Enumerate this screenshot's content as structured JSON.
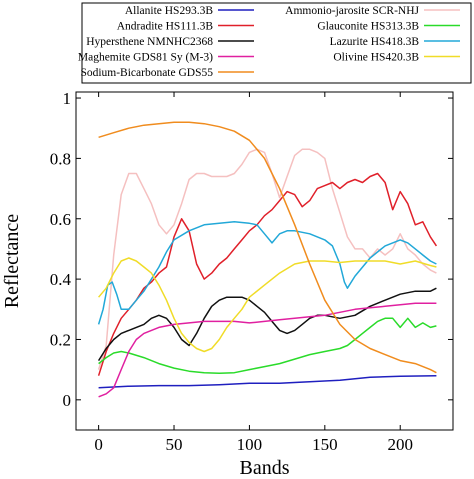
{
  "chart_data": {
    "type": "line",
    "title": "",
    "xlabel": "Bands",
    "ylabel": "Reflectance",
    "xlim": [
      -15,
      235
    ],
    "ylim": [
      -0.1,
      1.02
    ],
    "xticks": [
      0,
      50,
      100,
      150,
      200
    ],
    "yticks": [
      0,
      0.2,
      0.4,
      0.6,
      0.8,
      1
    ],
    "xtick_labels": [
      "0",
      "50",
      "100",
      "150",
      "200"
    ],
    "ytick_labels": [
      "0",
      "0.2",
      "0.4",
      "0.6",
      "0.8",
      "1"
    ],
    "grid": false,
    "legend_position": "top, above plot, two columns",
    "series": [
      {
        "name": "Allanite HS293.3B",
        "color": "#1f1fbf",
        "x": [
          0,
          20,
          40,
          60,
          80,
          100,
          120,
          140,
          160,
          180,
          200,
          224
        ],
        "y": [
          0.04,
          0.045,
          0.047,
          0.047,
          0.05,
          0.055,
          0.055,
          0.06,
          0.065,
          0.075,
          0.078,
          0.08
        ]
      },
      {
        "name": "Ammonio-jarosite SCR-NHJ",
        "color": "#f5c0c0",
        "x": [
          0,
          5,
          10,
          15,
          20,
          25,
          30,
          35,
          40,
          45,
          50,
          55,
          60,
          65,
          70,
          75,
          80,
          85,
          90,
          95,
          100,
          105,
          110,
          115,
          120,
          125,
          130,
          135,
          140,
          145,
          150,
          155,
          160,
          165,
          170,
          175,
          180,
          185,
          190,
          195,
          200,
          205,
          210,
          215,
          220,
          224
        ],
        "y": [
          0.1,
          0.18,
          0.48,
          0.68,
          0.75,
          0.75,
          0.7,
          0.65,
          0.58,
          0.55,
          0.58,
          0.65,
          0.73,
          0.75,
          0.75,
          0.74,
          0.74,
          0.74,
          0.75,
          0.78,
          0.82,
          0.83,
          0.82,
          0.75,
          0.67,
          0.74,
          0.81,
          0.83,
          0.83,
          0.82,
          0.8,
          0.7,
          0.62,
          0.54,
          0.5,
          0.5,
          0.47,
          0.5,
          0.48,
          0.5,
          0.55,
          0.5,
          0.48,
          0.45,
          0.43,
          0.42
        ]
      },
      {
        "name": "Andradite HS111.3B",
        "color": "#e0202a",
        "x": [
          0,
          5,
          10,
          15,
          20,
          25,
          30,
          35,
          40,
          45,
          50,
          55,
          60,
          65,
          70,
          75,
          80,
          85,
          90,
          95,
          100,
          105,
          110,
          115,
          120,
          125,
          130,
          135,
          140,
          145,
          150,
          155,
          160,
          165,
          170,
          175,
          180,
          185,
          190,
          195,
          200,
          205,
          210,
          215,
          220,
          224
        ],
        "y": [
          0.08,
          0.16,
          0.22,
          0.27,
          0.3,
          0.33,
          0.37,
          0.39,
          0.42,
          0.44,
          0.54,
          0.6,
          0.56,
          0.45,
          0.4,
          0.42,
          0.45,
          0.47,
          0.5,
          0.53,
          0.56,
          0.58,
          0.61,
          0.63,
          0.66,
          0.69,
          0.68,
          0.64,
          0.66,
          0.7,
          0.71,
          0.72,
          0.7,
          0.72,
          0.73,
          0.72,
          0.74,
          0.75,
          0.72,
          0.63,
          0.69,
          0.65,
          0.58,
          0.59,
          0.54,
          0.51
        ]
      },
      {
        "name": "Glauconite HS313.3B",
        "color": "#2adb2a",
        "x": [
          0,
          5,
          10,
          15,
          20,
          30,
          40,
          50,
          60,
          70,
          80,
          90,
          100,
          110,
          120,
          130,
          140,
          150,
          160,
          165,
          170,
          175,
          180,
          185,
          190,
          195,
          200,
          205,
          210,
          215,
          220,
          224
        ],
        "y": [
          0.12,
          0.14,
          0.155,
          0.16,
          0.155,
          0.14,
          0.12,
          0.105,
          0.095,
          0.09,
          0.088,
          0.09,
          0.1,
          0.11,
          0.12,
          0.135,
          0.15,
          0.16,
          0.17,
          0.18,
          0.2,
          0.22,
          0.24,
          0.26,
          0.27,
          0.27,
          0.24,
          0.27,
          0.24,
          0.255,
          0.24,
          0.245
        ]
      },
      {
        "name": "Hypersthene NMNHC2368",
        "color": "#111111",
        "x": [
          0,
          5,
          10,
          15,
          20,
          25,
          30,
          35,
          40,
          45,
          50,
          55,
          60,
          65,
          70,
          75,
          80,
          85,
          90,
          95,
          100,
          105,
          110,
          115,
          120,
          125,
          130,
          135,
          140,
          145,
          150,
          160,
          170,
          180,
          190,
          200,
          210,
          220,
          224
        ],
        "y": [
          0.13,
          0.17,
          0.2,
          0.22,
          0.23,
          0.24,
          0.25,
          0.27,
          0.28,
          0.27,
          0.24,
          0.2,
          0.18,
          0.22,
          0.27,
          0.31,
          0.33,
          0.34,
          0.34,
          0.34,
          0.33,
          0.31,
          0.29,
          0.26,
          0.23,
          0.22,
          0.23,
          0.25,
          0.27,
          0.28,
          0.28,
          0.27,
          0.28,
          0.31,
          0.33,
          0.35,
          0.36,
          0.36,
          0.37
        ]
      },
      {
        "name": "Lazurite HS418.3B",
        "color": "#22a8d8",
        "x": [
          0,
          3,
          6,
          9,
          12,
          15,
          20,
          25,
          30,
          35,
          40,
          45,
          50,
          60,
          70,
          80,
          90,
          100,
          105,
          110,
          115,
          120,
          125,
          130,
          140,
          150,
          155,
          160,
          163,
          165,
          170,
          180,
          190,
          200,
          205,
          210,
          215,
          220,
          224
        ],
        "y": [
          0.25,
          0.3,
          0.38,
          0.39,
          0.35,
          0.3,
          0.3,
          0.33,
          0.36,
          0.4,
          0.44,
          0.49,
          0.53,
          0.56,
          0.58,
          0.585,
          0.59,
          0.585,
          0.58,
          0.55,
          0.52,
          0.55,
          0.56,
          0.56,
          0.55,
          0.53,
          0.51,
          0.45,
          0.39,
          0.37,
          0.41,
          0.47,
          0.51,
          0.53,
          0.52,
          0.5,
          0.48,
          0.46,
          0.45
        ]
      },
      {
        "name": "Maghemite GDS81 Sy (M-3)",
        "color": "#e020a0",
        "x": [
          0,
          5,
          10,
          15,
          20,
          25,
          30,
          40,
          50,
          60,
          70,
          80,
          90,
          100,
          110,
          120,
          130,
          140,
          150,
          160,
          170,
          180,
          190,
          200,
          210,
          220,
          224
        ],
        "y": [
          0.01,
          0.02,
          0.04,
          0.1,
          0.16,
          0.2,
          0.22,
          0.24,
          0.25,
          0.255,
          0.26,
          0.26,
          0.26,
          0.255,
          0.26,
          0.265,
          0.27,
          0.275,
          0.28,
          0.29,
          0.3,
          0.305,
          0.31,
          0.315,
          0.32,
          0.32,
          0.32
        ]
      },
      {
        "name": "Olivine HS420.3B",
        "color": "#f0dc28",
        "x": [
          0,
          5,
          10,
          15,
          20,
          25,
          30,
          35,
          40,
          45,
          50,
          55,
          60,
          65,
          70,
          75,
          80,
          85,
          90,
          95,
          100,
          110,
          120,
          130,
          140,
          150,
          160,
          170,
          180,
          190,
          200,
          210,
          220,
          224
        ],
        "y": [
          0.34,
          0.37,
          0.42,
          0.46,
          0.47,
          0.46,
          0.44,
          0.42,
          0.38,
          0.33,
          0.27,
          0.22,
          0.19,
          0.17,
          0.16,
          0.17,
          0.2,
          0.24,
          0.27,
          0.3,
          0.34,
          0.38,
          0.42,
          0.45,
          0.46,
          0.46,
          0.455,
          0.46,
          0.46,
          0.46,
          0.45,
          0.46,
          0.445,
          0.44
        ]
      },
      {
        "name": "Sodium-Bicarbonate GDS55",
        "color": "#f08c1e",
        "x": [
          0,
          10,
          20,
          30,
          40,
          50,
          60,
          70,
          80,
          90,
          100,
          110,
          115,
          120,
          130,
          140,
          150,
          160,
          170,
          180,
          190,
          200,
          210,
          220,
          224
        ],
        "y": [
          0.87,
          0.885,
          0.9,
          0.91,
          0.915,
          0.92,
          0.92,
          0.915,
          0.905,
          0.89,
          0.86,
          0.8,
          0.75,
          0.7,
          0.58,
          0.45,
          0.33,
          0.25,
          0.2,
          0.17,
          0.15,
          0.13,
          0.12,
          0.1,
          0.09
        ]
      }
    ]
  }
}
